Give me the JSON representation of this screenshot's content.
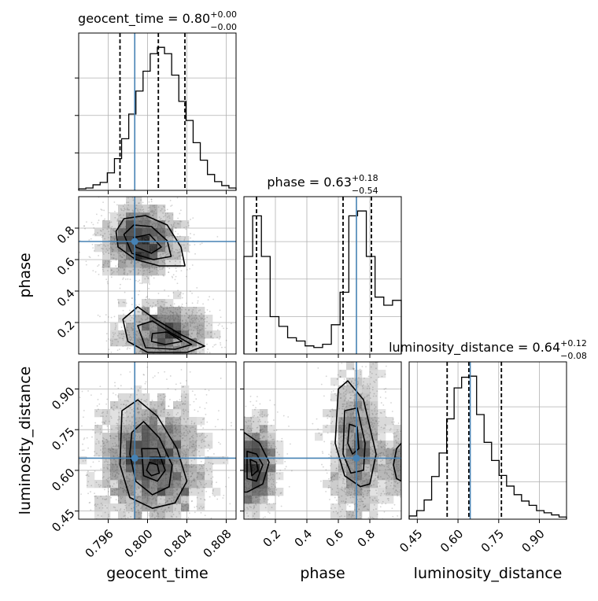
{
  "chart_data": {
    "type": "corner",
    "truth_color": "#4682b4",
    "parameters": [
      {
        "name": "geocent_time",
        "xlabel": "geocent_time",
        "title": {
          "text": "geocent_time = 0.80",
          "upper": "+0.00",
          "lower": "−0.00"
        },
        "range": [
          0.793,
          0.809
        ],
        "ticks": [
          0.796,
          0.8,
          0.804,
          0.808
        ],
        "tick_labels": [
          "0.796",
          "0.800",
          "0.804",
          "0.808"
        ],
        "truth": 0.7987,
        "quantiles": [
          0.7972,
          0.8011,
          0.8038
        ],
        "hist_counts": [
          2,
          3,
          7,
          10,
          22,
          40,
          65,
          96,
          125,
          150,
          172,
          180,
          172,
          145,
          112,
          88,
          60,
          38,
          20,
          11,
          6,
          3
        ],
        "hist_bins": [
          0.793,
          0.809
        ]
      },
      {
        "name": "phase",
        "xlabel": "phase",
        "ylabel": "phase",
        "title": {
          "text": "phase = 0.63",
          "upper": "+0.18",
          "lower": "−0.54"
        },
        "range": [
          0.0,
          1.0
        ],
        "ticks": [
          0.2,
          0.4,
          0.6,
          0.8
        ],
        "tick_labels": [
          "0.2",
          "0.4",
          "0.6",
          "0.8"
        ],
        "truth": 0.715,
        "quantiles": [
          0.08,
          0.63,
          0.81
        ],
        "hist_counts": [
          60,
          85,
          60,
          23,
          17,
          10,
          8,
          5,
          4,
          6,
          18,
          38,
          85,
          88,
          60,
          35,
          30,
          33
        ],
        "hist_bins": [
          0.0,
          1.0
        ]
      },
      {
        "name": "luminosity_distance",
        "xlabel": "luminosity_distance",
        "ylabel": "luminosity_distance",
        "title": {
          "text": "luminosity_distance = 0.64",
          "upper": "+0.12",
          "lower": "−0.08"
        },
        "range": [
          0.42,
          1.0
        ],
        "ticks": [
          0.45,
          0.6,
          0.75,
          0.9
        ],
        "tick_labels": [
          "0.45",
          "0.60",
          "0.75",
          "0.90"
        ],
        "truth": 0.645,
        "quantiles": [
          0.56,
          0.64,
          0.76
        ],
        "hist_counts": [
          3,
          8,
          18,
          40,
          62,
          94,
          123,
          133,
          134,
          98,
          72,
          55,
          41,
          31,
          23,
          17,
          13,
          8,
          6,
          4,
          2
        ],
        "hist_bins": [
          0.42,
          1.0
        ]
      }
    ],
    "grid": true
  }
}
